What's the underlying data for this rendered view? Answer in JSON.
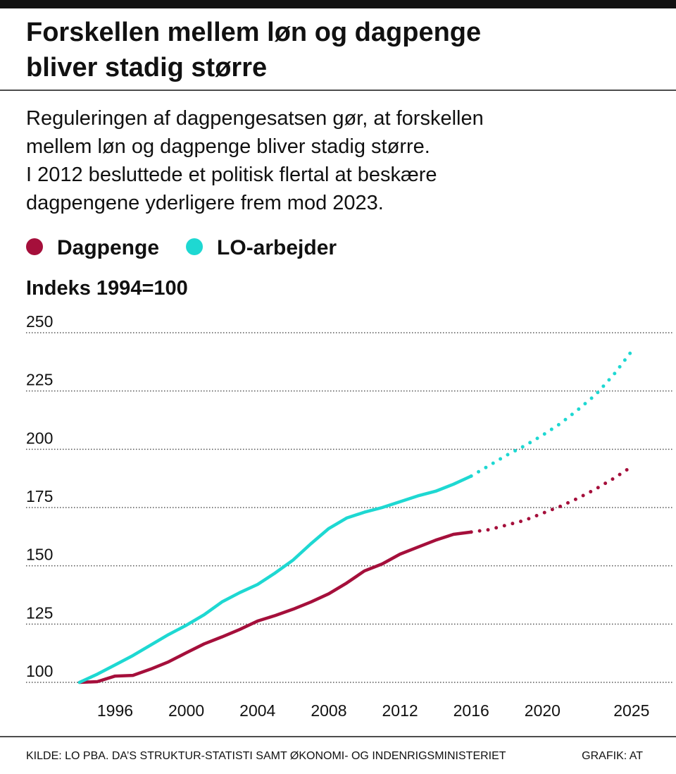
{
  "chart_data": {
    "type": "line",
    "title": [
      "Forskellen mellem løn og dagpenge",
      "bliver stadig større"
    ],
    "subtitle": [
      "Reguleringen af dagpengesatsen gør, at forskellen",
      "mellem løn og dagpenge bliver stadig større.",
      "I 2012 besluttede et politisk flertal at beskære",
      "dagpengene yderligere frem mod 2023."
    ],
    "y_label": "Indeks 1994=100",
    "x": [
      1994,
      1995,
      1996,
      1997,
      1998,
      1999,
      2000,
      2001,
      2002,
      2003,
      2004,
      2005,
      2006,
      2007,
      2008,
      2009,
      2010,
      2011,
      2012,
      2013,
      2014,
      2015,
      2016,
      2017,
      2018,
      2019,
      2020,
      2021,
      2022,
      2023,
      2024,
      2025
    ],
    "series": [
      {
        "name": "Dagpenge",
        "color": "#a50f3b",
        "values": [
          100,
          100.3,
          102.7,
          103,
          105.7,
          108.8,
          112.7,
          116.5,
          119.5,
          122.7,
          126.3,
          128.7,
          131.4,
          134.5,
          138,
          142.6,
          147.8,
          150.8,
          155,
          158,
          161,
          163.5,
          164.5,
          165.5,
          167.5,
          169.5,
          172.5,
          175.5,
          179,
          183,
          187.5,
          192.5
        ]
      },
      {
        "name": "LO-arbejder",
        "color": "#1ed8d2",
        "values": [
          100,
          103.5,
          107.5,
          111.5,
          116,
          120.5,
          124.5,
          129,
          134.5,
          138.5,
          142,
          147,
          152.5,
          159.5,
          166,
          170.5,
          173,
          175,
          177.5,
          180,
          182,
          185,
          188.5,
          193,
          197.5,
          201.5,
          206,
          211,
          217,
          223.5,
          232,
          242
        ]
      }
    ],
    "projection_from": 2016,
    "xlim": [
      1991,
      2027.3
    ],
    "xticks": [
      1996,
      2000,
      2004,
      2008,
      2012,
      2016,
      2020,
      2025
    ],
    "ylim": [
      100,
      250
    ],
    "yticks": [
      100,
      125,
      150,
      175,
      200,
      225,
      250
    ],
    "grid": true,
    "source": "KILDE: LO PBA. DA’S STRUKTUR-STATISTI SAMT ØKONOMI- OG INDENRIGSMINISTERIET",
    "credit": "GRAFIK: AT"
  }
}
